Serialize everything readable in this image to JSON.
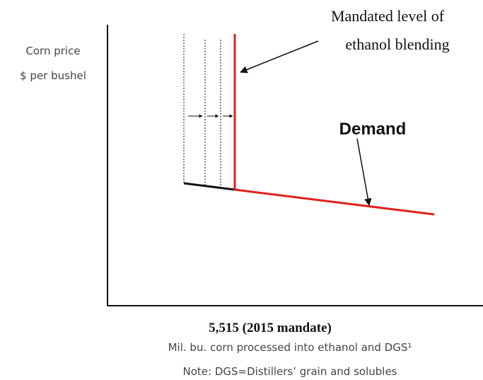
{
  "y_axis": {
    "label_line1": "Corn price",
    "label_line2": "$ per bushel"
  },
  "x_axis": {
    "mark_label": "5,515 (2015 mandate)",
    "label": "Mil. bu. corn processed into ethanol and DGS¹"
  },
  "annotations": {
    "mandate_line1": "Mandated level of",
    "mandate_line2": "ethanol blending",
    "demand": "Demand"
  },
  "note": "Note:  DGS=Distillers’ grain and solubles"
}
